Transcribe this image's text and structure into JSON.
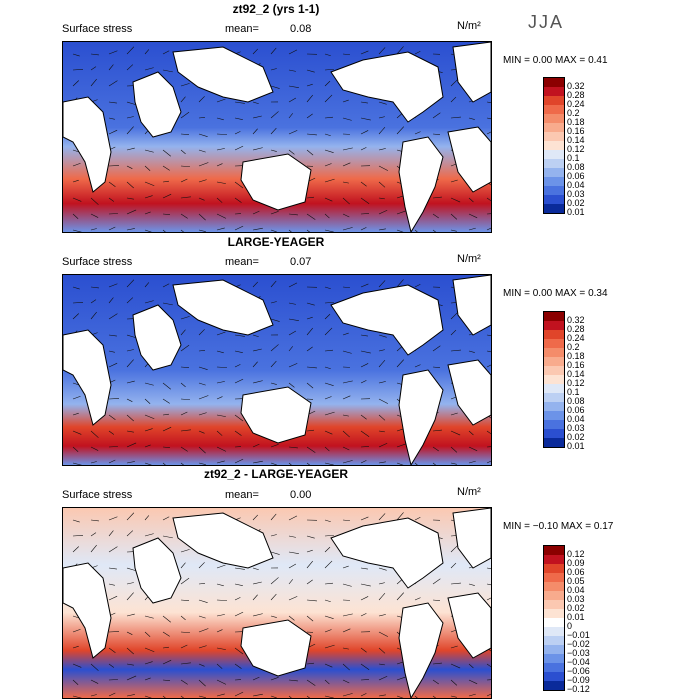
{
  "season": "JJA",
  "units": "N/m²",
  "panels": [
    {
      "title": "zt92_2 (yrs 1-1)",
      "variable": "Surface stress",
      "mean_label": "mean=",
      "mean_value": "0.08",
      "min_label": "MIN =",
      "min_value": "0.00",
      "max_label": "MAX =",
      "max_value": "0.41",
      "colorbar_ticks": [
        "0.32",
        "0.28",
        "0.24",
        "0.2",
        "0.18",
        "0.16",
        "0.14",
        "0.12",
        "0.1",
        "0.08",
        "0.06",
        "0.04",
        "0.03",
        "0.02",
        "0.01"
      ]
    },
    {
      "title": "LARGE-YEAGER",
      "variable": "Surface stress",
      "mean_label": "mean=",
      "mean_value": "0.07",
      "min_label": "MIN =",
      "min_value": "0.00",
      "max_label": "MAX =",
      "max_value": "0.34",
      "colorbar_ticks": [
        "0.32",
        "0.28",
        "0.24",
        "0.2",
        "0.18",
        "0.16",
        "0.14",
        "0.12",
        "0.1",
        "0.08",
        "0.06",
        "0.04",
        "0.03",
        "0.02",
        "0.01"
      ]
    },
    {
      "title": "zt92_2 - LARGE-YEAGER",
      "variable": "Surface stress",
      "mean_label": "mean=",
      "mean_value": "0.00",
      "min_label": "MIN =",
      "min_value": "−0.10",
      "max_label": "MAX =",
      "max_value": "0.17",
      "colorbar_ticks": [
        "0.12",
        "0.09",
        "0.06",
        "0.05",
        "0.04",
        "0.03",
        "0.02",
        "0.01",
        "0",
        "−0.01",
        "−0.02",
        "−0.03",
        "−0.04",
        "−0.06",
        "−0.09",
        "−0.12"
      ]
    }
  ],
  "chart_data": [
    {
      "type": "heatmap",
      "title": "zt92_2 (yrs 1-1)",
      "field": "Surface stress",
      "units": "N/m²",
      "season": "JJA",
      "mean": 0.08,
      "min": 0.0,
      "max": 0.41,
      "colorbar_levels": [
        0.01,
        0.02,
        0.03,
        0.04,
        0.06,
        0.08,
        0.1,
        0.12,
        0.14,
        0.16,
        0.18,
        0.2,
        0.24,
        0.28,
        0.32
      ]
    },
    {
      "type": "heatmap",
      "title": "LARGE-YEAGER",
      "field": "Surface stress",
      "units": "N/m²",
      "mean": 0.07,
      "min": 0.0,
      "max": 0.34,
      "colorbar_levels": [
        0.01,
        0.02,
        0.03,
        0.04,
        0.06,
        0.08,
        0.1,
        0.12,
        0.14,
        0.16,
        0.18,
        0.2,
        0.24,
        0.28,
        0.32
      ]
    },
    {
      "type": "heatmap",
      "title": "zt92_2 - LARGE-YEAGER",
      "field": "Surface stress",
      "units": "N/m²",
      "mean": 0.0,
      "min": -0.1,
      "max": 0.17,
      "colorbar_levels": [
        -0.12,
        -0.09,
        -0.06,
        -0.04,
        -0.03,
        -0.02,
        -0.01,
        0,
        0.01,
        0.02,
        0.03,
        0.04,
        0.05,
        0.06,
        0.09,
        0.12
      ]
    }
  ],
  "colors": {
    "seq": [
      "#8b0000",
      "#c1121f",
      "#e0452a",
      "#ef6a4a",
      "#f48c6a",
      "#f8ab8d",
      "#fbc8b1",
      "#fde3d3",
      "#dfe8f7",
      "#bcd0f3",
      "#94b3ee",
      "#6c93e8",
      "#4a72df",
      "#2b4fd0",
      "#0a2a9a"
    ],
    "div": [
      "#8b0000",
      "#c1121f",
      "#e0452a",
      "#ef6a4a",
      "#f48c6a",
      "#f8ab8d",
      "#fbc8b1",
      "#fde3d3",
      "#ffffff",
      "#dfe8f7",
      "#bcd0f3",
      "#94b3ee",
      "#6c93e8",
      "#4a72df",
      "#2b4fd0",
      "#0a2a9a"
    ]
  }
}
